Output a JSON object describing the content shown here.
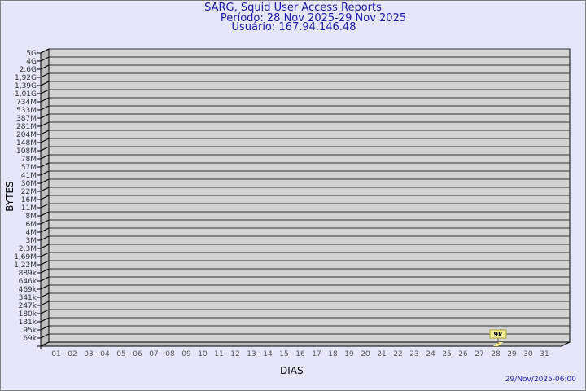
{
  "chart_data": {
    "type": "bar",
    "title": "SARG, Squid User Access Reports",
    "subtitle": [
      "Período: 28 Nov 2025-29 Nov 2025",
      "Usuário: 167.94.146.48"
    ],
    "xlabel": "DIAS",
    "ylabel": "BYTES",
    "y_scale": "log",
    "y_tick_labels": [
      "5G",
      "4G",
      "2,6G",
      "1,92G",
      "1,39G",
      "1,01G",
      "734M",
      "533M",
      "387M",
      "281M",
      "204M",
      "148M",
      "108M",
      "78M",
      "57M",
      "41M",
      "30M",
      "22M",
      "16M",
      "11M",
      "8M",
      "6M",
      "4M",
      "3M",
      "2,3M",
      "1,69M",
      "1,22M",
      "889k",
      "646k",
      "469k",
      "341k",
      "247k",
      "180k",
      "131k",
      "95k",
      "69k"
    ],
    "categories": [
      "01",
      "02",
      "03",
      "04",
      "05",
      "06",
      "07",
      "08",
      "09",
      "10",
      "11",
      "12",
      "13",
      "14",
      "15",
      "16",
      "17",
      "18",
      "19",
      "20",
      "21",
      "22",
      "23",
      "24",
      "25",
      "26",
      "27",
      "28",
      "29",
      "30",
      "31"
    ],
    "values": [
      0,
      0,
      0,
      0,
      0,
      0,
      0,
      0,
      0,
      0,
      0,
      0,
      0,
      0,
      0,
      0,
      0,
      0,
      0,
      0,
      0,
      0,
      0,
      0,
      0,
      0,
      0,
      9000,
      0,
      0,
      0
    ],
    "data_labels": [
      {
        "category": "28",
        "label": "9k"
      }
    ],
    "grid": true,
    "colors": {
      "background": "#e6e6fa",
      "plot": "#d3d3d3",
      "bar": "#ffe87a",
      "label_box": "#f5ef9a",
      "title": "#1a1aa6"
    }
  },
  "footer": {
    "timestamp": "29/Nov/2025-06:00"
  }
}
